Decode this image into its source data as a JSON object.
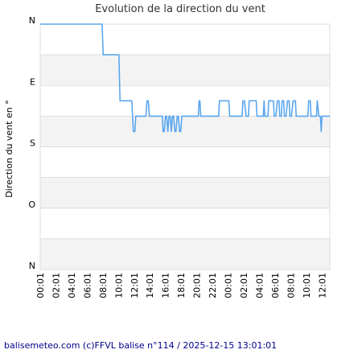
{
  "chart_data": {
    "type": "line",
    "title": "Evolution de la direction du vent",
    "ylabel": "Direction du vent en °",
    "y_categories": [
      "N",
      "E",
      "S",
      "O",
      "N"
    ],
    "ylim": [
      0,
      360
    ],
    "grid": true,
    "x_ticks": [
      "00:01",
      "02:01",
      "04:01",
      "06:01",
      "08:01",
      "10:01",
      "12:01",
      "14:01",
      "16:01",
      "18:01",
      "20:01",
      "22:01",
      "00:01",
      "02:01",
      "04:01",
      "06:01",
      "08:01",
      "10:01",
      "12:01"
    ],
    "x_tick_hours": [
      0,
      2,
      4,
      6,
      8,
      10,
      12,
      14,
      16,
      18,
      20,
      22,
      24,
      26,
      28,
      30,
      32,
      34,
      36
    ],
    "xlim": [
      0,
      37
    ],
    "series": [
      {
        "color": "#5aa7ee",
        "x": [
          0,
          7.9,
          8.05,
          10.05,
          10.2,
          11.7,
          11.9,
          12.1,
          12.2,
          13.5,
          13.65,
          13.8,
          13.95,
          15.6,
          15.7,
          15.85,
          16.0,
          16.15,
          16.3,
          16.45,
          16.6,
          16.75,
          16.9,
          17.05,
          17.2,
          17.35,
          17.5,
          17.65,
          17.8,
          17.95,
          18.1,
          18.25,
          18.4,
          18.55,
          18.7,
          18.85,
          19.0,
          20.2,
          20.3,
          20.4,
          20.5,
          22.8,
          22.9,
          24.1,
          24.2,
          25.8,
          25.9,
          26.1,
          26.3,
          26.6,
          26.7,
          27.6,
          27.7,
          27.8,
          28.5,
          28.6,
          28.7,
          29.1,
          29.2,
          29.8,
          29.9,
          30.1,
          30.3,
          30.5,
          30.6,
          30.8,
          30.9,
          31.1,
          31.2,
          31.4,
          31.6,
          31.8,
          31.9,
          32.1,
          32.3,
          32.6,
          32.7,
          32.9,
          33.0,
          34.2,
          34.3,
          34.5,
          34.6,
          35.3,
          35.4,
          35.6,
          35.8,
          35.9,
          36.0,
          37.0
        ],
        "y": [
          0,
          0,
          45,
          45,
          112.5,
          112.5,
          157.5,
          157.5,
          135,
          135,
          112.5,
          112.5,
          135,
          135,
          157.5,
          157.5,
          135,
          135,
          157.5,
          135,
          135,
          157.5,
          135,
          135,
          157.5,
          157.5,
          135,
          135,
          157.5,
          157.5,
          135,
          135,
          135,
          135,
          135,
          135,
          135,
          135,
          112.5,
          112.5,
          135,
          135,
          112.5,
          112.5,
          135,
          135,
          112.5,
          112.5,
          135,
          135,
          112.5,
          112.5,
          135,
          135,
          135,
          112.5,
          135,
          135,
          112.5,
          112.5,
          135,
          135,
          112.5,
          112.5,
          135,
          135,
          112.5,
          112.5,
          135,
          135,
          112.5,
          112.5,
          135,
          135,
          112.5,
          112.5,
          135,
          135,
          135,
          135,
          112.5,
          112.5,
          135,
          135,
          112.5,
          135,
          135,
          157.5,
          135,
          135
        ]
      }
    ]
  },
  "footer": "balisemeteo.com (c)FFVL balise n°114 / 2025-12-15 13:01:01"
}
